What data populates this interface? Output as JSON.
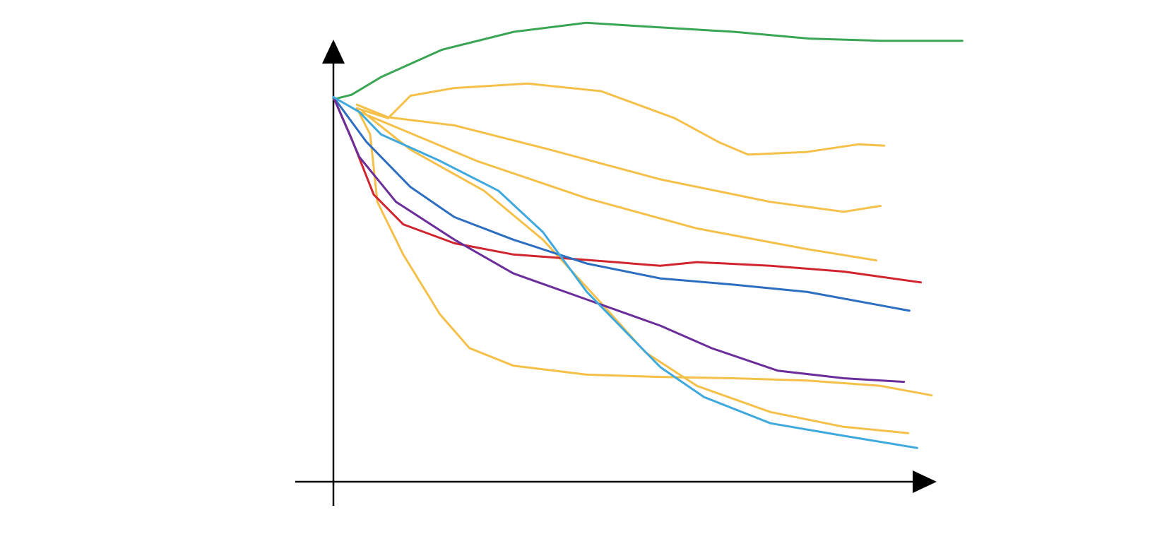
{
  "chart_data": {
    "type": "line",
    "xlim": [
      0,
      100
    ],
    "ylim": [
      0,
      100
    ],
    "series": [
      {
        "color": "#3aa655",
        "x": [
          0,
          3,
          8,
          18,
          30,
          42,
          54,
          66.5,
          79,
          91,
          104.5
        ],
        "values": [
          85,
          86,
          90,
          96,
          100,
          102,
          101,
          100,
          98.5,
          98,
          98
        ]
      },
      {
        "color": "#f5c04a",
        "x": [
          3.9,
          9.1,
          12.8,
          20.1,
          32.3,
          44.5,
          56.7,
          64,
          68.9,
          78.7,
          87.2,
          91.5
        ],
        "values": [
          83,
          80.8,
          85.8,
          87.5,
          88.5,
          86.8,
          80.8,
          75.5,
          72.7,
          73.3,
          75,
          74.7
        ]
      },
      {
        "color": "#f5c04a",
        "x": [
          3.9,
          9.1,
          20.1,
          36,
          54.3,
          72.6,
          84.8,
          90.9
        ],
        "values": [
          83.8,
          81,
          79.2,
          73.8,
          67.2,
          62.2,
          60,
          61.3
        ]
      },
      {
        "color": "#f5c04a",
        "x": [
          4.3,
          10.4,
          23.8,
          42.1,
          60.4,
          78.7,
          90.2
        ],
        "values": [
          82.2,
          78.8,
          71.3,
          63,
          56.3,
          51.7,
          49.2
        ]
      },
      {
        "color": "#f5c04a",
        "x": [
          3.9,
          6.1,
          7.3,
          11.6,
          17.7,
          22.6,
          29.9,
          42.1,
          54.3,
          66.5,
          78.7,
          90.9,
          99.4
        ],
        "values": [
          83,
          77.2,
          62.2,
          50.5,
          37.2,
          29.7,
          25.8,
          23.8,
          23.3,
          23,
          22.5,
          21.3,
          19.2
        ]
      },
      {
        "color": "#f5c04a",
        "x": [
          4.9,
          12.8,
          25,
          34.8,
          44.5,
          51.8,
          60.4,
          72.6,
          84.8,
          95.5
        ],
        "values": [
          82.2,
          73.8,
          64.7,
          53.8,
          39.7,
          28.8,
          21.3,
          15.5,
          12.2,
          10.8
        ]
      },
      {
        "color": "#d0252e",
        "x": [
          0,
          3,
          6.7,
          11.6,
          20.1,
          29.9,
          42.1,
          54.3,
          60.4,
          72.6,
          84.8,
          97.6
        ],
        "values": [
          85.5,
          76.3,
          63.8,
          57.2,
          53,
          50.5,
          49.3,
          48,
          48.8,
          48,
          46.7,
          44.3
        ]
      },
      {
        "color": "#2d6ec0",
        "x": [
          0,
          5.5,
          12.8,
          20.1,
          29.9,
          42.1,
          54.3,
          66.5,
          78.7,
          90.9,
          95.7
        ],
        "values": [
          85.5,
          75.5,
          65.5,
          58.8,
          53.8,
          48.5,
          45.2,
          43.8,
          42.2,
          39.2,
          38
        ]
      },
      {
        "color": "#6a2d9a",
        "x": [
          0,
          4.3,
          10.4,
          20.1,
          29.9,
          42.1,
          54.3,
          62.8,
          73.8,
          84.8,
          94.8
        ],
        "values": [
          85.5,
          72.2,
          62.2,
          53.8,
          46.3,
          40.5,
          34.7,
          29.7,
          24.7,
          23,
          22.2
        ]
      },
      {
        "color": "#3fa9de",
        "x": [
          0,
          4.3,
          7.9,
          17.7,
          27.4,
          34.8,
          42.1,
          49.4,
          54.3,
          61.6,
          72.6,
          84.8,
          97
        ],
        "values": [
          85.5,
          82.2,
          77.2,
          71.3,
          64.7,
          55.5,
          42.2,
          32.2,
          25.5,
          18.8,
          13,
          10.2,
          7.5
        ]
      }
    ]
  }
}
